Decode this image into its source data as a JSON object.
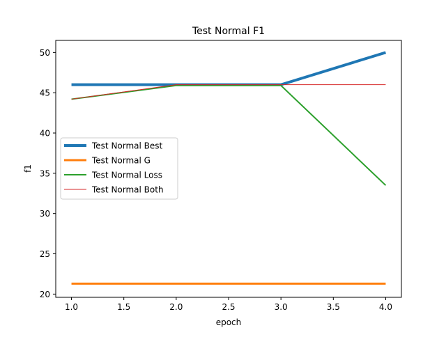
{
  "chart_data": {
    "type": "line",
    "title": "Test Normal F1",
    "xlabel": "epoch",
    "ylabel": "f1",
    "x": [
      1,
      2,
      3,
      4
    ],
    "xlim": [
      0.85,
      4.15
    ],
    "ylim": [
      19.6,
      51.5
    ],
    "xticks": [
      1.0,
      1.5,
      2.0,
      2.5,
      3.0,
      3.5,
      4.0
    ],
    "xtick_labels": [
      "1.0",
      "1.5",
      "2.0",
      "2.5",
      "3.0",
      "3.5",
      "4.0"
    ],
    "yticks": [
      20,
      25,
      30,
      35,
      40,
      45,
      50
    ],
    "ytick_labels": [
      "20",
      "25",
      "30",
      "35",
      "40",
      "45",
      "50"
    ],
    "grid": false,
    "legend_position": "center-left",
    "series": [
      {
        "name": "Test Normal Best",
        "values": [
          46.0,
          46.0,
          46.0,
          50.0
        ],
        "color": "#1f77b4",
        "width": 4
      },
      {
        "name": "Test Normal G",
        "values": [
          21.3,
          21.3,
          21.3,
          21.3
        ],
        "color": "#ff7f0e",
        "width": 3
      },
      {
        "name": "Test Normal Loss",
        "values": [
          44.2,
          45.9,
          45.9,
          33.5
        ],
        "color": "#2ca02c",
        "width": 2
      },
      {
        "name": "Test Normal Both",
        "values": [
          44.2,
          46.0,
          46.0,
          46.0
        ],
        "color": "#d62728",
        "width": 1
      }
    ]
  }
}
